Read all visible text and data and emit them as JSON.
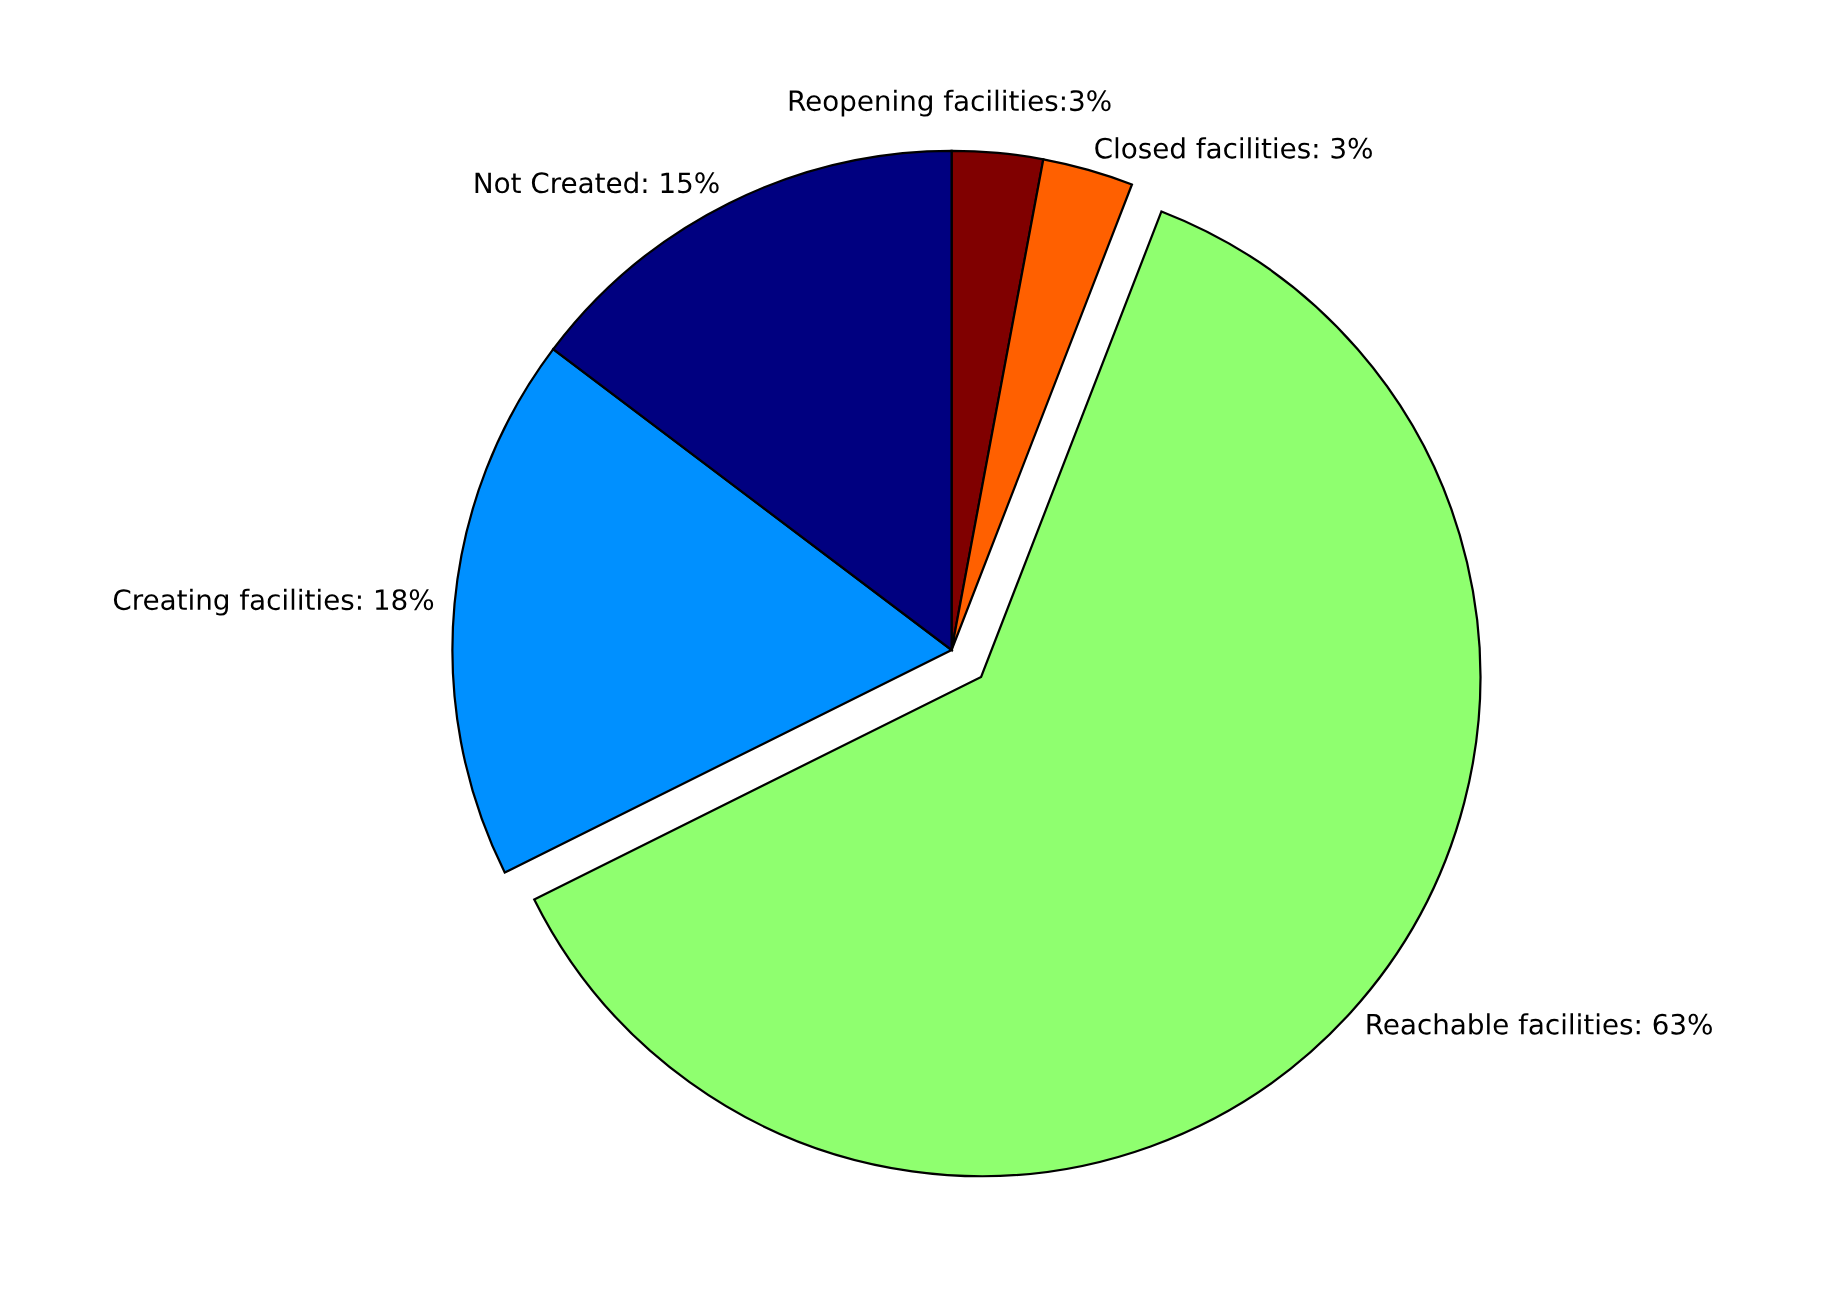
{
  "chart_data": {
    "type": "pie",
    "categories": [
      "Reopening facilities:3%",
      "Closed facilities: 3%",
      "Reachable facilities: 63%",
      "Creating facilities: 18%",
      "Not Created: 15%"
    ],
    "values": [
      3,
      3,
      63,
      18,
      15
    ],
    "colors": [
      "#800000",
      "#ff6000",
      "#8fff6f",
      "#0090ff",
      "#000080"
    ]
  }
}
